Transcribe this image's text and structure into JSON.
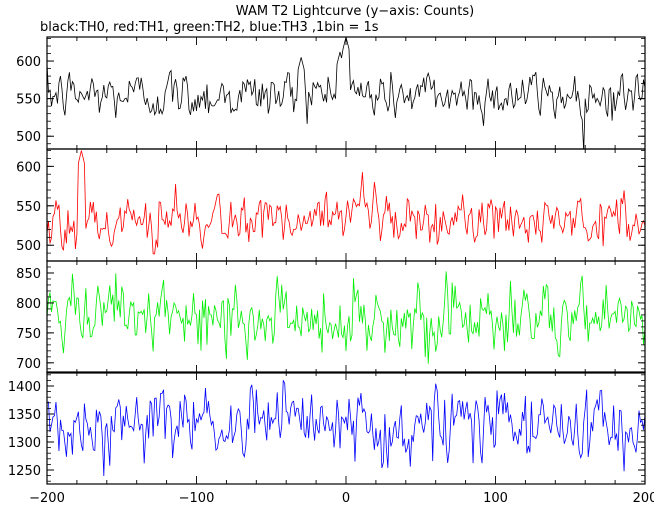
{
  "title": "WAM T2 Lightcurve (y−axis: Counts)",
  "subtitle": "black:TH0, red:TH1, green:TH2, blue:TH3 ,1bin = 1s",
  "chart_data": {
    "type": "line",
    "title": "WAM T2 Lightcurve (y−axis: Counts)",
    "subtitle": "black:TH0, red:TH1, green:TH2, blue:TH3 ,1bin = 1s",
    "xlabel": "",
    "xlim": [
      -200,
      200
    ],
    "x_ticks": [
      -200,
      -100,
      0,
      100,
      200
    ],
    "x_tick_labels": [
      "−200",
      "−100",
      "0",
      "100",
      "200"
    ],
    "x_step": 1,
    "grid": false,
    "series": [
      {
        "name": "TH0",
        "color": "#000000",
        "ylim": [
          483,
          632
        ],
        "y_ticks": [
          500,
          550,
          600
        ],
        "mean": 555,
        "sd": 16,
        "notes_peaks": [
          {
            "x": 0,
            "value": 632
          },
          {
            "x": -4,
            "value": 612
          },
          {
            "x": -30,
            "value": 605
          }
        ],
        "min_observed": 483,
        "max_observed": 632
      },
      {
        "name": "TH1",
        "color": "#ff0000",
        "ylim": [
          480,
          622
        ],
        "y_ticks": [
          500,
          550,
          600
        ],
        "mean": 530,
        "sd": 17,
        "notes_peaks": [
          {
            "x": -177,
            "value": 620
          }
        ],
        "min_observed": 480,
        "max_observed": 620
      },
      {
        "name": "TH2",
        "color": "#00ee00",
        "ylim": [
          683,
          870
        ],
        "y_ticks": [
          700,
          750,
          800,
          850
        ],
        "mean": 775,
        "sd": 28,
        "notes_peaks": [],
        "min_observed": 690,
        "max_observed": 868
      },
      {
        "name": "TH3",
        "color": "#0000ff",
        "ylim": [
          1225,
          1425
        ],
        "y_ticks": [
          1250,
          1300,
          1350,
          1400
        ],
        "mean": 1330,
        "sd": 32,
        "notes_peaks": [],
        "min_observed": 1228,
        "max_observed": 1425
      }
    ]
  }
}
